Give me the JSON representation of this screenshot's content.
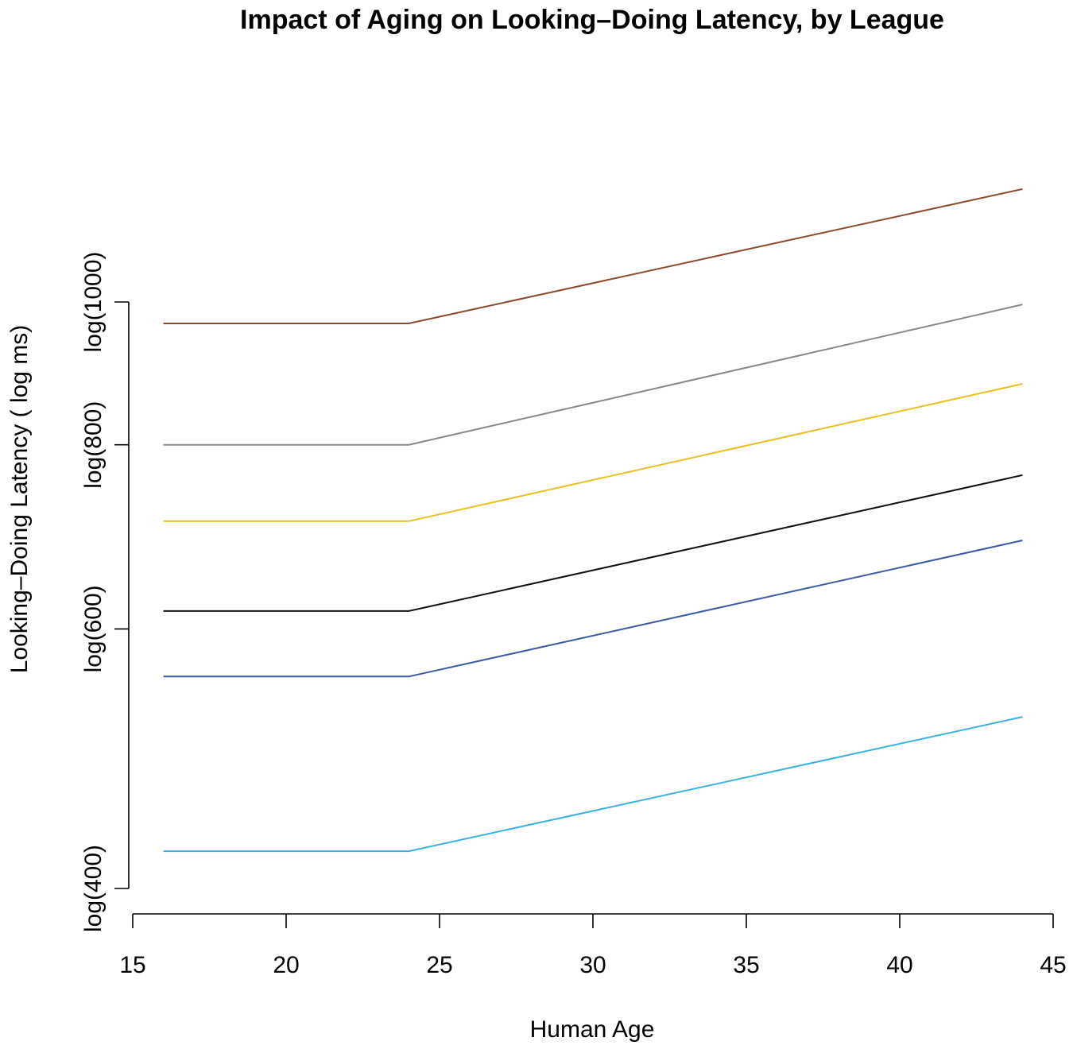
{
  "chart_data": {
    "type": "line",
    "title": "Impact of Aging on Looking–Doing Latency, by League",
    "xlabel": "Human Age",
    "ylabel": "Looking–Doing Latency ( log ms)",
    "xlim": [
      15,
      45
    ],
    "x_ticks": [
      15,
      20,
      25,
      30,
      35,
      40,
      45
    ],
    "x_tick_labels": [
      "15",
      "20",
      "25",
      "30",
      "35",
      "40",
      "45"
    ],
    "y_scale": "log",
    "y_ticks": [
      400,
      600,
      800,
      1000
    ],
    "y_tick_labels": [
      "log(400)",
      "log(600)",
      "log(800)",
      "log(1000)"
    ],
    "x": [
      16,
      24,
      44
    ],
    "grid": false,
    "legend": "none",
    "series": [
      {
        "name": "brown",
        "color": "#8B4A2B",
        "values": [
          967,
          967,
          1193
        ]
      },
      {
        "name": "gray",
        "color": "#888888",
        "values": [
          800,
          800,
          996
        ]
      },
      {
        "name": "gold",
        "color": "#E8C023",
        "values": [
          710,
          710,
          880
        ]
      },
      {
        "name": "black",
        "color": "#111111",
        "values": [
          617,
          617,
          763
        ]
      },
      {
        "name": "blue",
        "color": "#3B59A8",
        "values": [
          557,
          557,
          689
        ]
      },
      {
        "name": "sky-blue",
        "color": "#3BB2E3",
        "values": [
          424,
          424,
          523
        ]
      }
    ]
  }
}
